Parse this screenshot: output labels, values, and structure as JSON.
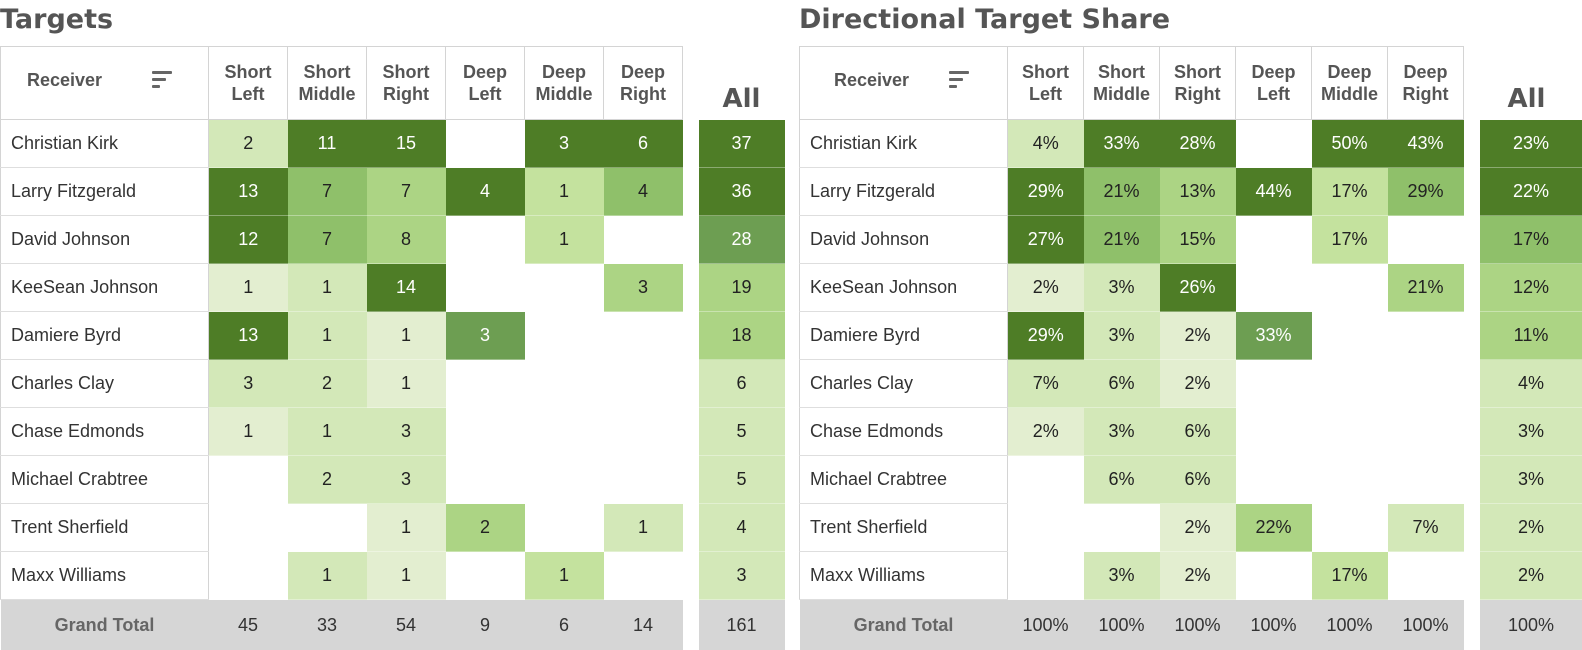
{
  "chart_data": [
    {
      "type": "heatmap",
      "title": "Targets",
      "row_header": "Receiver",
      "columns": [
        "Short Left",
        "Short Middle",
        "Short Right",
        "Deep Left",
        "Deep Middle",
        "Deep Right"
      ],
      "all_header": "All",
      "rows": [
        {
          "name": "Christian Kirk",
          "values": [
            "2",
            "11",
            "15",
            "",
            "3",
            "6"
          ],
          "all": "37"
        },
        {
          "name": "Larry Fitzgerald",
          "values": [
            "13",
            "7",
            "7",
            "4",
            "1",
            "4"
          ],
          "all": "36"
        },
        {
          "name": "David Johnson",
          "values": [
            "12",
            "7",
            "8",
            "",
            "1",
            ""
          ],
          "all": "28"
        },
        {
          "name": "KeeSean Johnson",
          "values": [
            "1",
            "1",
            "14",
            "",
            "",
            "3"
          ],
          "all": "19"
        },
        {
          "name": "Damiere Byrd",
          "values": [
            "13",
            "1",
            "1",
            "3",
            "",
            ""
          ],
          "all": "18"
        },
        {
          "name": "Charles Clay",
          "values": [
            "3",
            "2",
            "1",
            "",
            "",
            ""
          ],
          "all": "6"
        },
        {
          "name": "Chase Edmonds",
          "values": [
            "1",
            "1",
            "3",
            "",
            "",
            ""
          ],
          "all": "5"
        },
        {
          "name": "Michael Crabtree",
          "values": [
            "",
            "2",
            "3",
            "",
            "",
            ""
          ],
          "all": "5"
        },
        {
          "name": "Trent Sherfield",
          "values": [
            "",
            "",
            "1",
            "2",
            "",
            "1"
          ],
          "all": "4"
        },
        {
          "name": "Maxx Williams",
          "values": [
            "",
            "1",
            "1",
            "",
            "1",
            ""
          ],
          "all": "3"
        }
      ],
      "total_label": "Grand Total",
      "totals": [
        "45",
        "33",
        "54",
        "9",
        "6",
        "14"
      ],
      "total_all": "161"
    },
    {
      "type": "heatmap",
      "title": "Directional Target Share",
      "row_header": "Receiver",
      "columns": [
        "Short Left",
        "Short Middle",
        "Short Right",
        "Deep Left",
        "Deep Middle",
        "Deep Right"
      ],
      "all_header": "All",
      "rows": [
        {
          "name": "Christian Kirk",
          "values": [
            "4%",
            "33%",
            "28%",
            "",
            "50%",
            "43%"
          ],
          "all": "23%"
        },
        {
          "name": "Larry Fitzgerald",
          "values": [
            "29%",
            "21%",
            "13%",
            "44%",
            "17%",
            "29%"
          ],
          "all": "22%"
        },
        {
          "name": "David Johnson",
          "values": [
            "27%",
            "21%",
            "15%",
            "",
            "17%",
            ""
          ],
          "all": "17%"
        },
        {
          "name": "KeeSean Johnson",
          "values": [
            "2%",
            "3%",
            "26%",
            "",
            "",
            "21%"
          ],
          "all": "12%"
        },
        {
          "name": "Damiere Byrd",
          "values": [
            "29%",
            "3%",
            "2%",
            "33%",
            "",
            ""
          ],
          "all": "11%"
        },
        {
          "name": "Charles Clay",
          "values": [
            "7%",
            "6%",
            "2%",
            "",
            "",
            ""
          ],
          "all": "4%"
        },
        {
          "name": "Chase Edmonds",
          "values": [
            "2%",
            "3%",
            "6%",
            "",
            "",
            ""
          ],
          "all": "3%"
        },
        {
          "name": "Michael Crabtree",
          "values": [
            "",
            "6%",
            "6%",
            "",
            "",
            ""
          ],
          "all": "3%"
        },
        {
          "name": "Trent Sherfield",
          "values": [
            "",
            "",
            "2%",
            "22%",
            "",
            "7%"
          ],
          "all": "2%"
        },
        {
          "name": "Maxx Williams",
          "values": [
            "",
            "3%",
            "2%",
            "",
            "17%",
            ""
          ],
          "all": "2%"
        }
      ],
      "total_label": "Grand Total",
      "totals": [
        "100%",
        "100%",
        "100%",
        "100%",
        "100%",
        "100%"
      ],
      "total_all": "100%"
    }
  ],
  "colors": {
    "scale": [
      "#e3eed0",
      "#d3e8b8",
      "#c4e29e",
      "#acd484",
      "#8fc06a",
      "#6d9e52",
      "#4e7d26"
    ],
    "total_bg": "#d6d6d6",
    "sort_icon": "sort-lines-icon"
  }
}
